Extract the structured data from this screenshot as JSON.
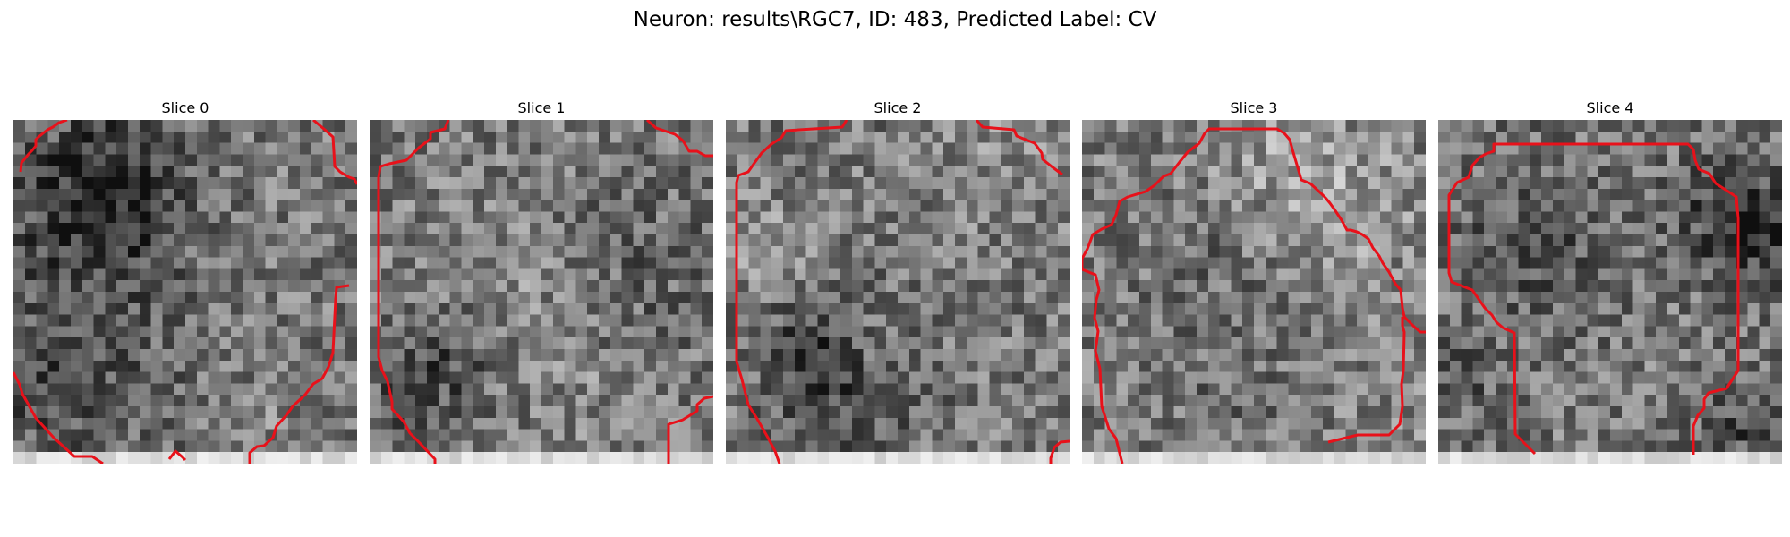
{
  "figure": {
    "title": "Neuron: results\\RGC7, ID: 483, Predicted Label: CV",
    "colors": {
      "outline": "#e8111a",
      "background": "#ffffff"
    },
    "grid_size": 30
  },
  "panels": [
    {
      "title": "Slice 0",
      "seed": 11
    },
    {
      "title": "Slice 1",
      "seed": 23
    },
    {
      "title": "Slice 2",
      "seed": 37
    },
    {
      "title": "Slice 3",
      "seed": 51
    },
    {
      "title": "Slice 4",
      "seed": 67
    }
  ]
}
